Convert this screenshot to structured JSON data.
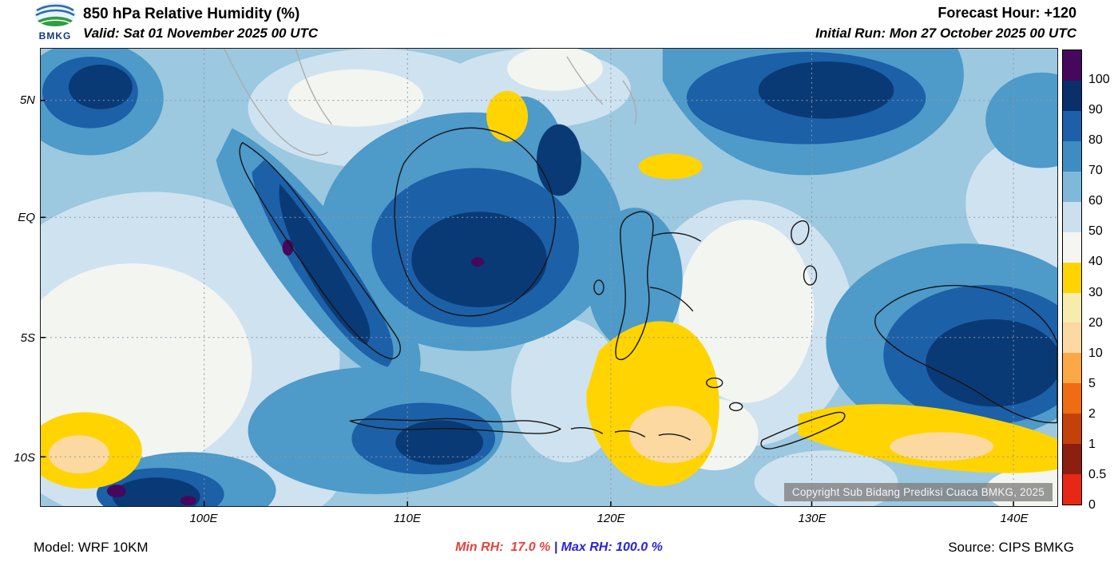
{
  "header": {
    "logo_text": "BMKG",
    "title": "850 hPa Relative Humidity (%)",
    "valid_line": "Valid: Sat 01 November 2025 00 UTC",
    "forecast_hour": "Forecast Hour: +120",
    "initial_run": "Initial Run: Mon 27 October 2025 00 UTC"
  },
  "map": {
    "lat_labels": [
      "5N",
      "EQ",
      "5S",
      "10S"
    ],
    "lon_labels": [
      "100E",
      "110E",
      "120E",
      "130E",
      "140E"
    ],
    "copyright": "Copyright Sub Bidang Prediksi Cuaca BMKG, 2025"
  },
  "colorbar": {
    "unit": "%",
    "segments": [
      {
        "label": "100",
        "color": "#46085c"
      },
      {
        "label": "90",
        "color": "#09306b"
      },
      {
        "label": "80",
        "color": "#1d5fa8"
      },
      {
        "label": "70",
        "color": "#3d8dc3"
      },
      {
        "label": "60",
        "color": "#7fb9da"
      },
      {
        "label": "50",
        "color": "#cbdfee"
      },
      {
        "label": "40",
        "color": "#f5f6f1"
      },
      {
        "label": "30",
        "color": "#ffd400"
      },
      {
        "label": "20",
        "color": "#f6ecae"
      },
      {
        "label": "10",
        "color": "#fcd9a2"
      },
      {
        "label": "5",
        "color": "#fda846"
      },
      {
        "label": "2",
        "color": "#ef6c12"
      },
      {
        "label": "1",
        "color": "#c4420a"
      },
      {
        "label": "0.5",
        "color": "#8c1f10"
      },
      {
        "label": "0",
        "color": "#e82817"
      }
    ]
  },
  "footer": {
    "model": "Model: WRF 10KM",
    "min_rh": "Min RH:  17.0 %",
    "separator": "|",
    "max_rh": "Max RH: 100.0 %",
    "source": "Source: CIPS BMKG",
    "min_color": "#e8413c",
    "max_color": "#2323e0"
  }
}
